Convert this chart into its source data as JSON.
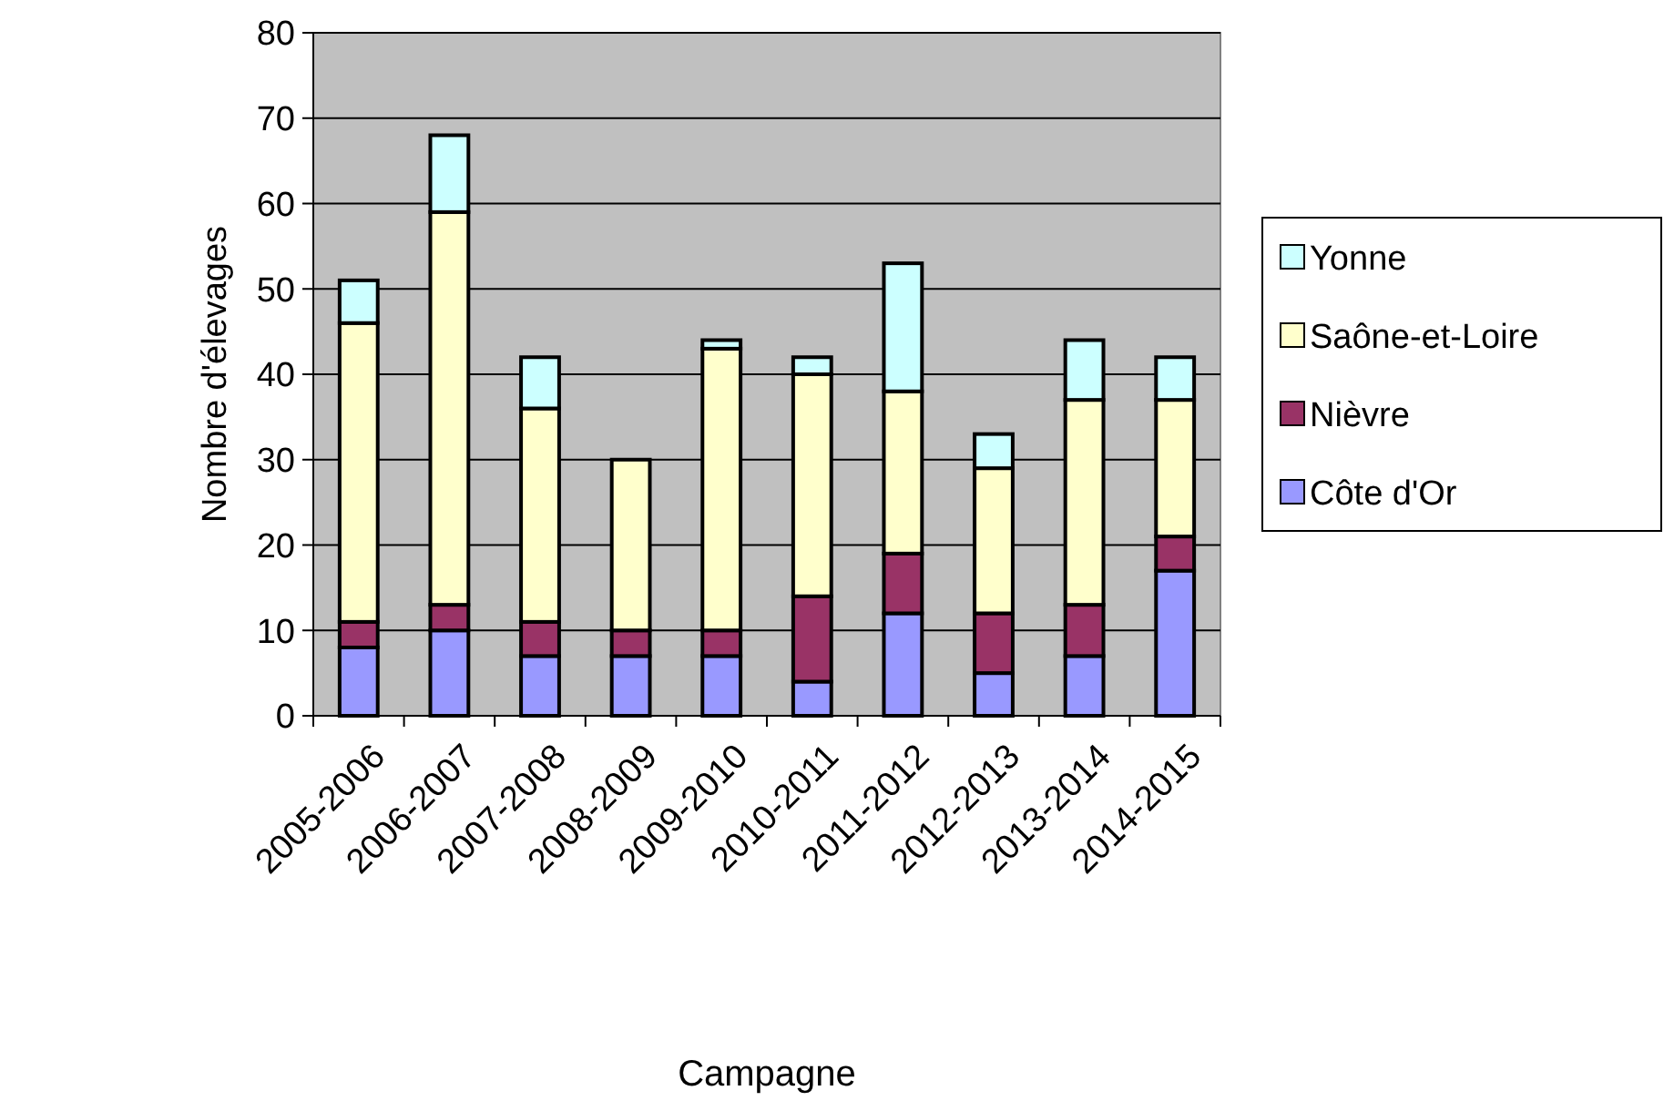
{
  "chart_data": {
    "type": "bar",
    "stacked": true,
    "xlabel": "Campagne",
    "ylabel": "Nombre d'élevages",
    "categories": [
      "2005-2006",
      "2006-2007",
      "2007-2008",
      "2008-2009",
      "2009-2010",
      "2010-2011",
      "2011-2012",
      "2012-2013",
      "2013-2014",
      "2014-2015"
    ],
    "series": [
      {
        "name": "Côte d'Or",
        "color": "#9999ff",
        "values": [
          8,
          10,
          7,
          7,
          7,
          4,
          12,
          5,
          7,
          17
        ]
      },
      {
        "name": "Nièvre",
        "color": "#993366",
        "values": [
          3,
          3,
          4,
          3,
          3,
          10,
          7,
          7,
          6,
          4
        ]
      },
      {
        "name": "Saône-et-Loire",
        "color": "#ffffcc",
        "values": [
          35,
          46,
          25,
          20,
          33,
          26,
          19,
          17,
          24,
          16
        ]
      },
      {
        "name": "Yonne",
        "color": "#ccffff",
        "values": [
          5,
          9,
          6,
          0,
          1,
          2,
          15,
          4,
          7,
          5
        ]
      }
    ],
    "ylim": [
      0,
      80
    ],
    "yticks": [
      0,
      10,
      20,
      30,
      40,
      50,
      60,
      70,
      80
    ],
    "grid": "y",
    "legend": "right"
  }
}
